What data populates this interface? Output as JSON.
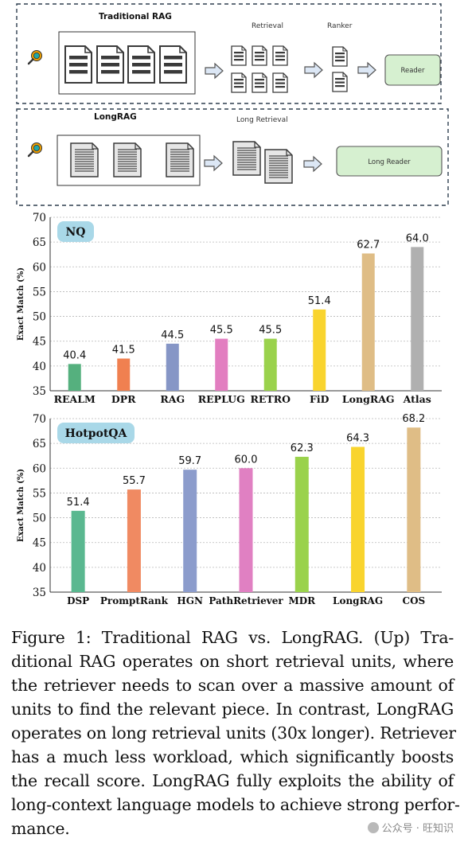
{
  "diagram": {
    "traditional": {
      "title": "Traditional RAG",
      "retrieval_label": "Retrieval",
      "ranker_label": "Ranker",
      "reader_label": "Reader"
    },
    "longrag": {
      "title": "LongRAG",
      "retrieval_label": "Long Retrieval",
      "reader_label": "Long Reader"
    },
    "colors": {
      "border": "#2f3f4f",
      "doc_fill": "#dcdcdc",
      "doc_stroke": "#3a3a3a",
      "arrow_fill": "#dce7f5",
      "arrow_stroke": "#555555",
      "reader_fill": "#d6f0d0",
      "reader_stroke": "#555555",
      "search_icon": "#f0a000",
      "search_lens": "#20a8a8"
    }
  },
  "chart_data": [
    {
      "type": "bar",
      "title": "NQ",
      "ylabel": "Exact Match (%)",
      "xlabel": "",
      "ylim": [
        35,
        70
      ],
      "yticks": [
        35,
        40,
        45,
        50,
        55,
        60,
        65,
        70
      ],
      "grid": true,
      "categories": [
        "REALM",
        "DPR",
        "RAG",
        "REPLUG",
        "RETRO",
        "FiD",
        "LongRAG",
        "Atlas"
      ],
      "values": [
        40.4,
        41.5,
        44.5,
        45.5,
        45.5,
        51.4,
        62.7,
        64.0
      ],
      "value_labels": [
        "40.4",
        "41.5",
        "44.5",
        "45.5",
        "45.5",
        "51.4",
        "62.7",
        "64.0"
      ],
      "colors": [
        "#55b07e",
        "#f08050",
        "#8696c6",
        "#e27ec0",
        "#9ad24c",
        "#f9d42e",
        "#dfbd86",
        "#b0b0b0"
      ],
      "title_badge_color": "#a9d8e8"
    },
    {
      "type": "bar",
      "title": "HotpotQA",
      "ylabel": "Exact Match (%)",
      "xlabel": "",
      "ylim": [
        35,
        70
      ],
      "yticks": [
        35,
        40,
        45,
        50,
        55,
        60,
        65,
        70
      ],
      "grid": true,
      "categories": [
        "DSP",
        "PromptRank",
        "HGN",
        "PathRetriever",
        "MDR",
        "LongRAG",
        "COS"
      ],
      "values": [
        51.4,
        55.7,
        59.7,
        60.0,
        62.3,
        64.3,
        68.2
      ],
      "value_labels": [
        "51.4",
        "55.7",
        "59.7",
        "60.0",
        "62.3",
        "64.3",
        "68.2"
      ],
      "colors": [
        "#5ab890",
        "#f08a62",
        "#8c9ccc",
        "#e080c2",
        "#9ad24c",
        "#f9d42e",
        "#dfbd86"
      ],
      "title_badge_color": "#a9d8e8"
    }
  ],
  "caption": {
    "lines": [
      "Figure 1: Traditional RAG vs.  LongRAG. (Up) Tra-",
      "ditional RAG operates on short retrieval units, where",
      "the retriever needs to scan over a massive amount of",
      "units to find the relevant piece. In contrast, LongRAG",
      "operates on long retrieval units (30x longer). Retriever",
      "has a much less workload, which significantly boosts",
      "the recall score. LongRAG fully exploits the ability of",
      "long-context language models to achieve strong perfor-",
      "mance."
    ]
  },
  "watermark": {
    "text": "公众号 · 旺知识"
  }
}
